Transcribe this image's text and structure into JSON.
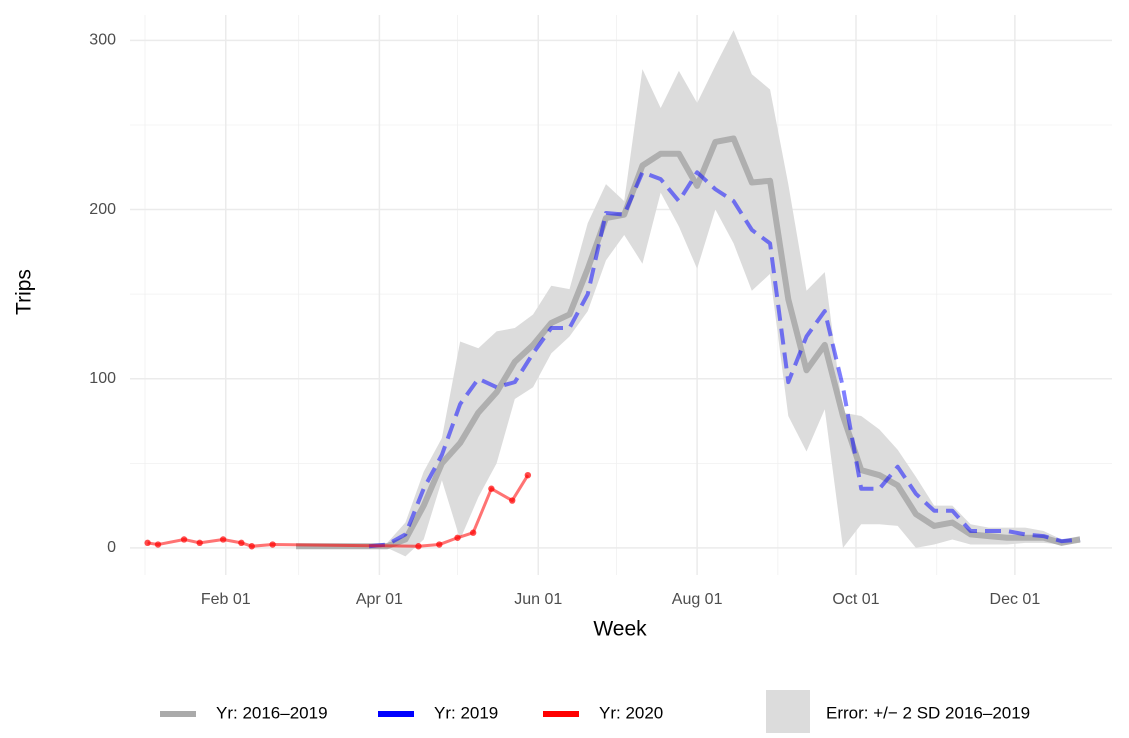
{
  "chart_data": {
    "type": "line",
    "x_label": "Week",
    "y_label": "Trips",
    "xlim": [
      "Jan 01",
      "Dec 31"
    ],
    "xticks": [
      "Feb 01",
      "Apr 01",
      "Jun 01",
      "Aug 01",
      "Oct 01",
      "Dec 01"
    ],
    "xminorticks": [
      "Jan 01",
      "Mar 01",
      "May 01",
      "Jul 01",
      "Sep 01",
      "Nov 01"
    ],
    "ylim": [
      -16,
      315
    ],
    "yticks": [
      0,
      100,
      200,
      300
    ],
    "yminorticks": [
      50,
      150,
      250
    ],
    "grid": true,
    "legend": "bottom",
    "ribbon": {
      "name": "Error: +/− 2 SD 2016–2019",
      "color": "#dcdcdc",
      "x": [
        "Feb 28",
        "Mar 07",
        "Mar 14",
        "Mar 21",
        "Mar 28",
        "Apr 04",
        "Apr 11",
        "Apr 18",
        "Apr 25",
        "May 02",
        "May 09",
        "May 16",
        "May 23",
        "May 30",
        "Jun 06",
        "Jun 13",
        "Jun 20",
        "Jun 27",
        "Jul 04",
        "Jul 11",
        "Jul 18",
        "Jul 25",
        "Aug 01",
        "Aug 08",
        "Aug 15",
        "Aug 22",
        "Aug 29",
        "Sep 05",
        "Sep 12",
        "Sep 19",
        "Sep 26",
        "Oct 03",
        "Oct 10",
        "Oct 17",
        "Oct 24",
        "Oct 31",
        "Nov 07",
        "Nov 14",
        "Nov 21",
        "Nov 28",
        "Dec 05",
        "Dec 12",
        "Dec 19",
        "Dec 26"
      ],
      "lower": [
        0,
        0,
        0,
        0,
        0,
        0,
        -5,
        5,
        40,
        5,
        30,
        50,
        88,
        95,
        115,
        125,
        140,
        170,
        185,
        168,
        210,
        190,
        165,
        200,
        180,
        152,
        162,
        78,
        57,
        82,
        0,
        14,
        14,
        13,
        0,
        2,
        5,
        2,
        2,
        2,
        3,
        3,
        2,
        3
      ],
      "upper": [
        2,
        2,
        2,
        2,
        2,
        3,
        15,
        45,
        65,
        122,
        118,
        128,
        130,
        138,
        155,
        153,
        192,
        215,
        205,
        283,
        260,
        282,
        263,
        285,
        306,
        280,
        271,
        215,
        152,
        163,
        80,
        78,
        70,
        58,
        42,
        25,
        25,
        14,
        12,
        12,
        12,
        10,
        5,
        7
      ]
    },
    "series": [
      {
        "name": "Yr: 2016–2019",
        "color": "#aaaaaa",
        "alpha": 0.9,
        "width": 6,
        "dash": false,
        "points": false,
        "x": [
          "Feb 28",
          "Mar 07",
          "Mar 14",
          "Mar 21",
          "Mar 28",
          "Apr 04",
          "Apr 11",
          "Apr 18",
          "Apr 25",
          "May 02",
          "May 09",
          "May 16",
          "May 23",
          "May 30",
          "Jun 06",
          "Jun 13",
          "Jun 20",
          "Jun 27",
          "Jul 04",
          "Jul 11",
          "Jul 18",
          "Jul 25",
          "Aug 01",
          "Aug 08",
          "Aug 15",
          "Aug 22",
          "Aug 29",
          "Sep 05",
          "Sep 12",
          "Sep 19",
          "Sep 26",
          "Oct 03",
          "Oct 10",
          "Oct 17",
          "Oct 24",
          "Oct 31",
          "Nov 07",
          "Nov 14",
          "Nov 21",
          "Nov 28",
          "Dec 05",
          "Dec 12",
          "Dec 19",
          "Dec 26"
        ],
        "values": [
          1,
          1,
          1,
          1,
          1,
          1,
          5,
          25,
          50,
          62,
          80,
          92,
          110,
          120,
          133,
          138,
          165,
          195,
          197,
          226,
          233,
          233,
          214,
          240,
          242,
          216,
          217,
          147,
          105,
          120,
          78,
          46,
          43,
          37,
          20,
          13,
          15,
          8,
          7,
          6,
          6,
          6,
          3,
          5
        ]
      },
      {
        "name": "Yr: 2019",
        "color": "#0000ff",
        "alpha": 0.5,
        "width": 4,
        "dash": true,
        "points": false,
        "x": [
          "Mar 28",
          "Apr 04",
          "Apr 11",
          "Apr 18",
          "Apr 25",
          "May 02",
          "May 09",
          "May 16",
          "May 23",
          "May 30",
          "Jun 06",
          "Jun 13",
          "Jun 20",
          "Jun 27",
          "Jul 04",
          "Jul 11",
          "Jul 18",
          "Jul 25",
          "Aug 01",
          "Aug 08",
          "Aug 15",
          "Aug 22",
          "Aug 29",
          "Sep 05",
          "Sep 12",
          "Sep 19",
          "Sep 26",
          "Oct 03",
          "Oct 10",
          "Oct 17",
          "Oct 24",
          "Oct 31",
          "Nov 07",
          "Nov 14",
          "Nov 21",
          "Nov 28",
          "Dec 05",
          "Dec 12",
          "Dec 19",
          "Dec 26"
        ],
        "values": [
          1,
          2,
          8,
          35,
          55,
          85,
          100,
          95,
          98,
          115,
          130,
          130,
          150,
          198,
          197,
          222,
          218,
          205,
          222,
          212,
          205,
          188,
          180,
          98,
          125,
          140,
          95,
          35,
          35,
          48,
          32,
          22,
          22,
          10,
          10,
          10,
          8,
          7,
          4,
          5
        ]
      },
      {
        "name": "Yr: 2020",
        "color": "#ff0000",
        "alpha": 0.55,
        "width": 3,
        "dash": false,
        "points": true,
        "x": [
          "Jan 02",
          "Jan 06",
          "Jan 16",
          "Jan 22",
          "Jan 31",
          "Feb 07",
          "Feb 11",
          "Feb 19",
          "Apr 16",
          "Apr 24",
          "May 01",
          "May 07",
          "May 14",
          "May 22",
          "May 28"
        ],
        "values": [
          3,
          2,
          5,
          3,
          5,
          3,
          1,
          2,
          1,
          2,
          6,
          9,
          35,
          28,
          43
        ]
      }
    ]
  }
}
